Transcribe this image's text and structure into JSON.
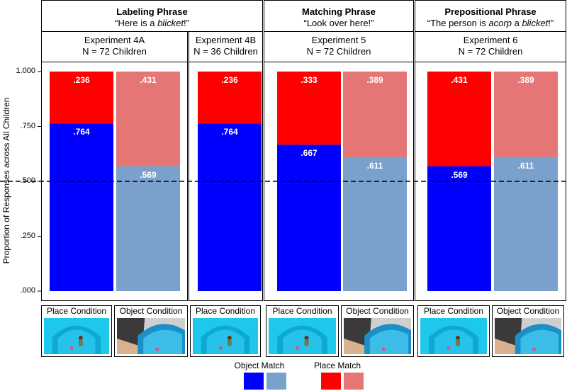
{
  "chart_data": {
    "type": "bar",
    "stacked": true,
    "ylabel": "Proportion of Responses across All Children",
    "ylim": [
      0,
      1
    ],
    "yticks": [
      ".000",
      ".250",
      ".500",
      ".750",
      "1.000"
    ],
    "reference_line": 0.5,
    "phrase_groups": [
      {
        "title": "Labeling Phrase",
        "subtitle_parts": [
          "“Here is a ",
          "blicket",
          "!”"
        ]
      },
      {
        "title": "Matching Phrase",
        "subtitle_parts": [
          "“Look over here!”",
          "",
          ""
        ]
      },
      {
        "title": "Prepositional Phrase",
        "subtitle_parts": [
          "“The person is ",
          "acorp",
          " a ",
          "blicket",
          "!”"
        ]
      }
    ],
    "experiments": [
      {
        "name": "Experiment 4A",
        "n": "N = 72 Children"
      },
      {
        "name": "Experiment 4B",
        "n": "N = 36 Children"
      },
      {
        "name": "Experiment 5",
        "n": "N = 72 Children"
      },
      {
        "name": "Experiment 6",
        "n": "N = 72 Children"
      }
    ],
    "bars": [
      {
        "experiment": "Experiment 4A",
        "condition": "Place Condition",
        "object_match": 0.764,
        "place_match": 0.236,
        "object_label": ".764",
        "place_label": ".236",
        "shade": "dark"
      },
      {
        "experiment": "Experiment 4A",
        "condition": "Object Condition",
        "object_match": 0.569,
        "place_match": 0.431,
        "object_label": ".569",
        "place_label": ".431",
        "shade": "light"
      },
      {
        "experiment": "Experiment 4B",
        "condition": "Place Condition",
        "object_match": 0.764,
        "place_match": 0.236,
        "object_label": ".764",
        "place_label": ".236",
        "shade": "dark"
      },
      {
        "experiment": "Experiment 5",
        "condition": "Place Condition",
        "object_match": 0.667,
        "place_match": 0.333,
        "object_label": ".667",
        "place_label": ".333",
        "shade": "dark"
      },
      {
        "experiment": "Experiment 5",
        "condition": "Object Condition",
        "object_match": 0.611,
        "place_match": 0.389,
        "object_label": ".611",
        "place_label": ".389",
        "shade": "light"
      },
      {
        "experiment": "Experiment 6",
        "condition": "Place Condition",
        "object_match": 0.569,
        "place_match": 0.431,
        "object_label": ".569",
        "place_label": ".431",
        "shade": "dark"
      },
      {
        "experiment": "Experiment 6",
        "condition": "Object Condition",
        "object_match": 0.611,
        "place_match": 0.389,
        "object_label": ".611",
        "place_label": ".389",
        "shade": "light"
      }
    ],
    "legend": {
      "object_match": "Object Match",
      "place_match": "Place Match"
    },
    "colors": {
      "object_dark": "#0000ff",
      "object_light": "#7aa0cc",
      "place_dark": "#ff0000",
      "place_light": "#e67575"
    }
  }
}
